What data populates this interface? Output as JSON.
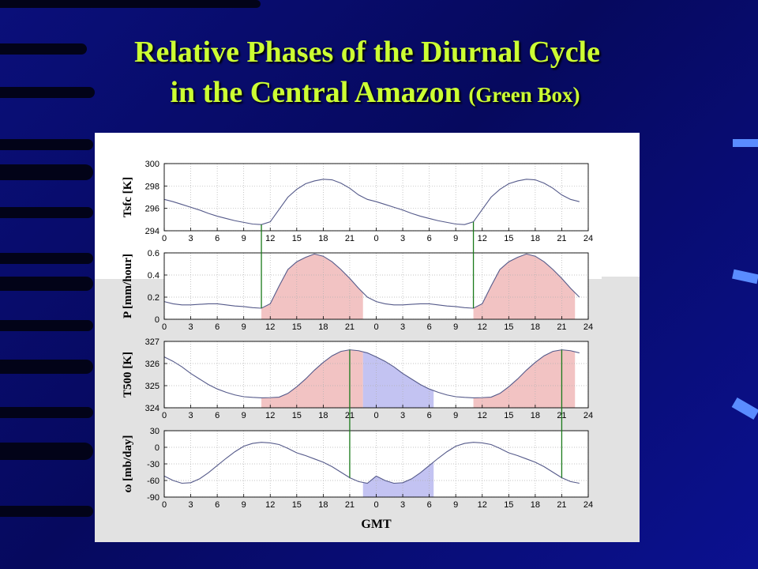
{
  "slide": {
    "title_line1": "Relative Phases of the Diurnal Cycle",
    "title_line2": "in the Central Amazon",
    "title_suffix": "(Green Box)",
    "title_color": "#ccff33"
  },
  "chart_data": {
    "type": "line",
    "xlabel": "GMT",
    "x_tick_labels": [
      "0",
      "3",
      "6",
      "9",
      "12",
      "15",
      "18",
      "21",
      "0",
      "3",
      "6",
      "9",
      "12",
      "15",
      "18",
      "21",
      "24"
    ],
    "x_hours": [
      0,
      1,
      2,
      3,
      4,
      5,
      6,
      7,
      8,
      9,
      10,
      11,
      12,
      13,
      14,
      15,
      16,
      17,
      18,
      19,
      20,
      21,
      22,
      23,
      24,
      25,
      26,
      27,
      28,
      29,
      30,
      31,
      32,
      33,
      34,
      35,
      36,
      37,
      38,
      39,
      40,
      41,
      42,
      43,
      44,
      45,
      46,
      47
    ],
    "line_color": "#555a8a",
    "green_line_color": "#1a7a1a",
    "red_fill_color": "#f0b8b8",
    "blue_fill_color": "#b8b8f0",
    "subplots": [
      {
        "ylabel": "Tsfc  [K]",
        "ylim": [
          294,
          300
        ],
        "yticks": [
          294,
          296,
          298,
          300
        ],
        "values": [
          296.8,
          296.6,
          296.35,
          296.1,
          295.85,
          295.55,
          295.3,
          295.1,
          294.9,
          294.75,
          294.6,
          294.55,
          294.8,
          295.9,
          297.0,
          297.7,
          298.2,
          298.45,
          298.6,
          298.55,
          298.25,
          297.8,
          297.2,
          296.8,
          296.6,
          296.35,
          296.1,
          295.85,
          295.55,
          295.3,
          295.1,
          294.9,
          294.75,
          294.6,
          294.55,
          294.8,
          295.9,
          297.0,
          297.7,
          298.2,
          298.45,
          298.6,
          298.55,
          298.25,
          297.8,
          297.2,
          296.8,
          296.6
        ],
        "shade": []
      },
      {
        "ylabel": "P  [mm/hour]",
        "ylim": [
          0,
          0.6
        ],
        "yticks": [
          0,
          0.2,
          0.4,
          0.6
        ],
        "values": [
          0.16,
          0.14,
          0.13,
          0.13,
          0.135,
          0.14,
          0.14,
          0.13,
          0.12,
          0.115,
          0.105,
          0.1,
          0.14,
          0.3,
          0.45,
          0.52,
          0.56,
          0.59,
          0.57,
          0.52,
          0.45,
          0.37,
          0.28,
          0.2,
          0.16,
          0.14,
          0.13,
          0.13,
          0.135,
          0.14,
          0.14,
          0.13,
          0.12,
          0.115,
          0.105,
          0.1,
          0.14,
          0.3,
          0.45,
          0.52,
          0.56,
          0.59,
          0.57,
          0.52,
          0.45,
          0.37,
          0.28,
          0.2
        ],
        "shade": [
          {
            "from": 11,
            "to": 22.5,
            "color": "red"
          },
          {
            "from": 35,
            "to": 46.5,
            "color": "red"
          }
        ]
      },
      {
        "ylabel": "T500  [K]",
        "ylim": [
          324,
          327
        ],
        "yticks": [
          324,
          325,
          326,
          327
        ],
        "values": [
          326.3,
          326.1,
          325.85,
          325.55,
          325.3,
          325.05,
          324.85,
          324.7,
          324.58,
          324.5,
          324.47,
          324.45,
          324.46,
          324.48,
          324.65,
          324.95,
          325.3,
          325.7,
          326.05,
          326.35,
          326.55,
          326.62,
          326.58,
          326.48,
          326.3,
          326.1,
          325.85,
          325.55,
          325.3,
          325.05,
          324.85,
          324.7,
          324.58,
          324.5,
          324.47,
          324.45,
          324.46,
          324.48,
          324.65,
          324.95,
          325.3,
          325.7,
          326.05,
          326.35,
          326.55,
          326.62,
          326.58,
          326.48
        ],
        "shade": [
          {
            "from": 11,
            "to": 22.5,
            "color": "red"
          },
          {
            "from": 22.5,
            "to": 30.5,
            "color": "blue"
          },
          {
            "from": 35,
            "to": 46.5,
            "color": "red"
          }
        ]
      },
      {
        "ylabel": "ω  [mb/day]",
        "ylim": [
          -90,
          30
        ],
        "yticks": [
          -90,
          -60,
          -30,
          0,
          30
        ],
        "values": [
          -52,
          -60,
          -65,
          -64,
          -57,
          -46,
          -33,
          -20,
          -8,
          2,
          7,
          9,
          8,
          5,
          -2,
          -10,
          -15,
          -21,
          -27,
          -35,
          -45,
          -55,
          -62,
          -65,
          -52,
          -60,
          -65,
          -64,
          -57,
          -46,
          -33,
          -20,
          -8,
          2,
          7,
          9,
          8,
          5,
          -2,
          -10,
          -15,
          -21,
          -27,
          -35,
          -45,
          -55,
          -62,
          -65
        ],
        "shade": [
          {
            "from": 22.5,
            "to": 30.5,
            "color": "blue"
          }
        ]
      }
    ],
    "phase_lines": [
      {
        "x": 11,
        "from_panel": 0,
        "to_panel": 1
      },
      {
        "x": 35,
        "from_panel": 0,
        "to_panel": 1
      },
      {
        "x": 21,
        "from_panel": 2,
        "to_panel": 3
      },
      {
        "x": 45,
        "from_panel": 2,
        "to_panel": 3
      }
    ]
  }
}
